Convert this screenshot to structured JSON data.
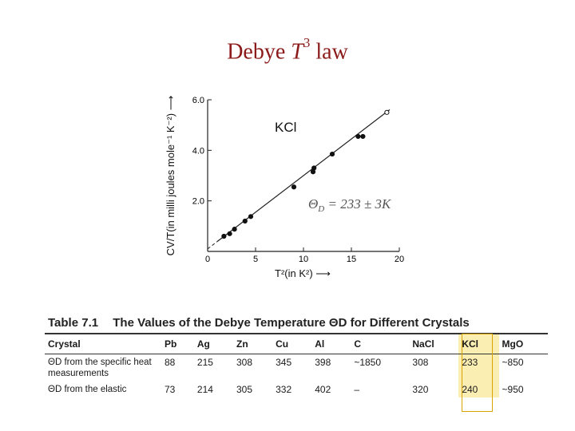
{
  "header": {
    "title_prefix": "Debye",
    "title_var": "T",
    "title_exp": "3",
    "title_suffix": "law"
  },
  "figure": {
    "label": "KCl",
    "theta_label": "Θ",
    "theta_sub": "D",
    "theta_value": "= 233 ± 3K",
    "y_axis_label": "CV/T(in milli joules mole⁻¹ K⁻²) ⟶",
    "x_axis_label": "T²(in K²) ⟶"
  },
  "chart_data": {
    "type": "scatter",
    "title": "",
    "xlabel": "T²(in K²)",
    "ylabel": "CV/T(in milli joules mole⁻¹ K⁻²)",
    "xlim": [
      0,
      20
    ],
    "ylim": [
      0,
      6.0
    ],
    "x_ticks": [
      "0",
      "5",
      "10",
      "15",
      "20"
    ],
    "y_ticks": [
      "2.0",
      "4.0",
      "6.0"
    ],
    "grid": false,
    "series": [
      {
        "x": [
          1.7,
          2.3,
          2.8,
          3.9,
          4.5,
          9.0,
          11.0,
          11.1,
          13.0,
          15.7,
          16.2,
          18.7
        ],
        "y": [
          0.6,
          0.7,
          0.88,
          1.2,
          1.38,
          2.55,
          3.15,
          3.3,
          3.85,
          4.55,
          4.55,
          5.5
        ]
      }
    ],
    "fit_line": {
      "slope": 0.29,
      "intercept": 0.1,
      "x_range": [
        1.0,
        19.0
      ]
    }
  },
  "table": {
    "caption_num": "Table 7.1",
    "caption_text": "The Values of the Debye Temperature ΘD for Different Crystals",
    "headers": [
      "Crystal",
      "Pb",
      "Ag",
      "Zn",
      "Cu",
      "Al",
      "C",
      "NaCl",
      "KCl",
      "MgO"
    ],
    "rows": [
      {
        "label": "ΘD from the specific heat measurements",
        "values": [
          "88",
          "215",
          "308",
          "345",
          "398",
          "~1850",
          "308",
          "233",
          "~850"
        ]
      },
      {
        "label": "ΘD from the elastic",
        "values": [
          "73",
          "214",
          "305",
          "332",
          "402",
          "–",
          "320",
          "240",
          "~950"
        ]
      }
    ]
  },
  "colors": {
    "title": "#8b1a1a",
    "highlight": "#fbeeb3",
    "highlight_border": "#d9a400"
  }
}
